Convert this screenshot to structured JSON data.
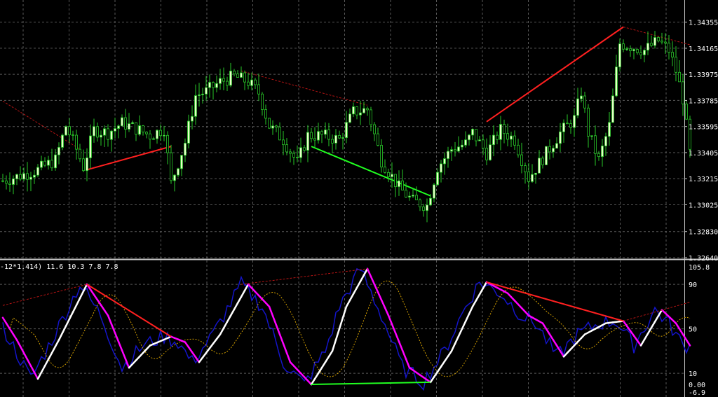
{
  "colors": {
    "background": "#000000",
    "grid": "#5a5a5a",
    "axis_text": "#ffffff",
    "bull_body": "#e8ffc8",
    "bear_body": "#000000",
    "wick": "#28c828",
    "trend_red": "#ff2020",
    "trend_green": "#20ff20",
    "osc_blue": "#1414c8",
    "osc_white": "#ffffff",
    "osc_magenta": "#ff00ff",
    "osc_signal": "#d4a000"
  },
  "chart_data": [
    {
      "type": "candlestick",
      "yticks": [
        "1.34355",
        "1.34165",
        "1.33975",
        "1.33785",
        "1.33595",
        "1.33405",
        "1.33215",
        "1.33025",
        "1.32830",
        "1.32640"
      ],
      "ylim": [
        1.3264,
        1.3445
      ],
      "grid": true,
      "trendlines": [
        {
          "color": "red",
          "style": "dash",
          "from": [
            0,
            1.3378
          ],
          "to": [
            22,
            1.3343
          ]
        },
        {
          "color": "red",
          "style": "solid",
          "from": [
            24,
            1.3328
          ],
          "to": [
            48,
            1.3345
          ]
        },
        {
          "color": "red",
          "style": "dash",
          "from": [
            68,
            1.34
          ],
          "to": [
            104,
            1.3375
          ]
        },
        {
          "color": "green",
          "style": "solid",
          "from": [
            88,
            1.3345
          ],
          "to": [
            122,
            1.3309
          ]
        },
        {
          "color": "red",
          "style": "solid",
          "from": [
            138,
            1.3363
          ],
          "to": [
            177,
            1.3432
          ]
        },
        {
          "color": "red",
          "style": "dash",
          "from": [
            177,
            1.3432
          ],
          "to": [
            196,
            1.3419
          ]
        }
      ]
    },
    {
      "type": "line",
      "header": "-12*1.414) 11.6 10.3 7.8 7.8",
      "yticks": [
        "105.8",
        "90",
        "50",
        "10",
        "0.00",
        "-6.9"
      ],
      "ylim": [
        -6.9,
        105.8
      ],
      "grid": true,
      "series_colors": [
        "blue",
        "white/magenta",
        "dotted orange"
      ],
      "trendlines": [
        {
          "color": "red",
          "style": "dash",
          "from": [
            0,
            71
          ],
          "to": [
            24,
            90
          ]
        },
        {
          "color": "red",
          "style": "solid",
          "from": [
            24,
            90
          ],
          "to": [
            48,
            43
          ]
        },
        {
          "color": "red",
          "style": "dash",
          "from": [
            68,
            90
          ],
          "to": [
            104,
            104
          ]
        },
        {
          "color": "green",
          "style": "solid",
          "from": [
            88,
            0
          ],
          "to": [
            122,
            2
          ]
        },
        {
          "color": "red",
          "style": "solid",
          "from": [
            138,
            92
          ],
          "to": [
            177,
            57
          ]
        },
        {
          "color": "red",
          "style": "dash",
          "from": [
            177,
            57
          ],
          "to": [
            196,
            74
          ]
        }
      ]
    }
  ]
}
